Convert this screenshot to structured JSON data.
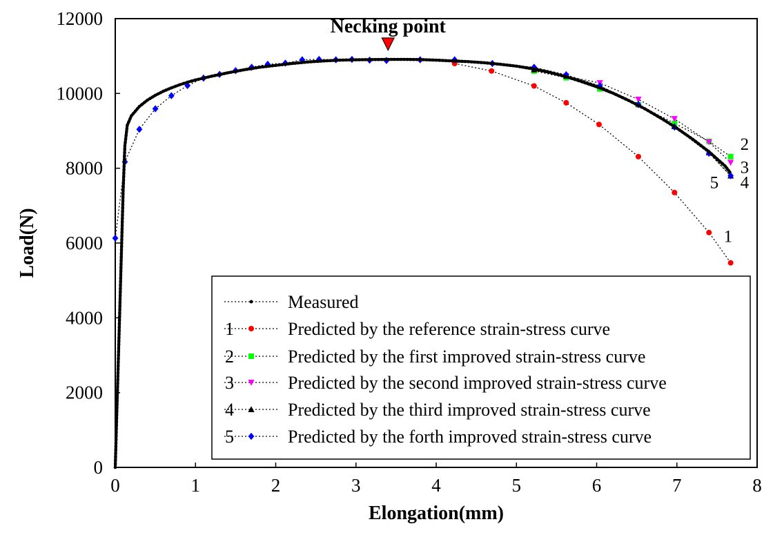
{
  "chart_data": {
    "type": "line",
    "title": "",
    "xlabel": "Elongation(mm)",
    "ylabel": "Load(N)",
    "xlim": [
      0,
      8
    ],
    "ylim": [
      0,
      12000
    ],
    "x_ticks": [
      "0",
      "1",
      "2",
      "3",
      "4",
      "5",
      "6",
      "7",
      "8"
    ],
    "y_ticks": [
      "0",
      "2000",
      "4000",
      "6000",
      "8000",
      "10000",
      "12000"
    ],
    "grid": false,
    "legend_position": "bottom-right",
    "annotation": {
      "text": "Necking point",
      "x": 3.4,
      "y": 10950,
      "color": "#ff0000"
    },
    "series": [
      {
        "name": "Measured",
        "label": "",
        "color": "#000000",
        "marker": "circle",
        "points": [
          [
            0,
            0
          ],
          [
            0.02,
            1500
          ],
          [
            0.04,
            3000
          ],
          [
            0.06,
            4500
          ],
          [
            0.08,
            6000
          ],
          [
            0.1,
            7500
          ],
          [
            0.12,
            8600
          ],
          [
            0.15,
            9150
          ],
          [
            0.2,
            9400
          ],
          [
            0.3,
            9650
          ],
          [
            0.4,
            9820
          ],
          [
            0.5,
            9950
          ],
          [
            0.6,
            10060
          ],
          [
            0.7,
            10150
          ],
          [
            0.8,
            10230
          ],
          [
            0.9,
            10300
          ],
          [
            1.0,
            10360
          ],
          [
            1.2,
            10460
          ],
          [
            1.4,
            10550
          ],
          [
            1.6,
            10630
          ],
          [
            1.8,
            10700
          ],
          [
            2.0,
            10750
          ],
          [
            2.2,
            10800
          ],
          [
            2.4,
            10840
          ],
          [
            2.6,
            10870
          ],
          [
            2.8,
            10890
          ],
          [
            3.0,
            10900
          ],
          [
            3.2,
            10905
          ],
          [
            3.4,
            10910
          ],
          [
            3.6,
            10910
          ],
          [
            3.8,
            10905
          ],
          [
            4.0,
            10890
          ],
          [
            4.2,
            10870
          ],
          [
            4.4,
            10850
          ],
          [
            4.6,
            10820
          ],
          [
            4.8,
            10780
          ],
          [
            5.0,
            10730
          ],
          [
            5.2,
            10660
          ],
          [
            5.4,
            10570
          ],
          [
            5.6,
            10460
          ],
          [
            5.8,
            10330
          ],
          [
            6.0,
            10180
          ],
          [
            6.2,
            10010
          ],
          [
            6.4,
            9810
          ],
          [
            6.6,
            9590
          ],
          [
            6.8,
            9340
          ],
          [
            7.0,
            9070
          ],
          [
            7.2,
            8770
          ],
          [
            7.4,
            8440
          ],
          [
            7.6,
            8060
          ],
          [
            7.67,
            7870
          ]
        ]
      },
      {
        "name": "Predicted by the reference strain-stress curve",
        "label": "1",
        "color": "#ff0000",
        "marker": "circle",
        "points": [
          [
            4.23,
            10800
          ],
          [
            4.69,
            10600
          ],
          [
            5.22,
            10200
          ],
          [
            5.62,
            9750
          ],
          [
            6.03,
            9170
          ],
          [
            6.52,
            8310
          ],
          [
            6.97,
            7350
          ],
          [
            7.4,
            6280
          ],
          [
            7.67,
            5470
          ]
        ]
      },
      {
        "name": "Predicted by the first improved strain-stress curve",
        "label": "2",
        "color": "#00ff00",
        "marker": "square",
        "points": [
          [
            5.22,
            10600
          ],
          [
            5.62,
            10420
          ],
          [
            6.04,
            10120
          ],
          [
            6.52,
            9700
          ],
          [
            6.97,
            9200
          ],
          [
            7.4,
            8720
          ],
          [
            7.67,
            8310
          ]
        ]
      },
      {
        "name": "Predicted by the second improved strain-stress curve",
        "label": "3",
        "color": "#ff00ff",
        "marker": "triangle-down",
        "points": [
          [
            5.22,
            10630
          ],
          [
            5.62,
            10460
          ],
          [
            6.04,
            10280
          ],
          [
            6.52,
            9840
          ],
          [
            6.97,
            9320
          ],
          [
            7.4,
            8700
          ],
          [
            7.67,
            8150
          ]
        ]
      },
      {
        "name": "Predicted by the third improved strain-stress curve",
        "label": "4",
        "color": "#000000",
        "marker": "triangle-up",
        "points": [
          [
            5.22,
            10640
          ],
          [
            5.62,
            10470
          ],
          [
            6.04,
            10200
          ],
          [
            6.52,
            9720
          ],
          [
            6.97,
            9120
          ],
          [
            7.4,
            8420
          ],
          [
            7.67,
            7800
          ]
        ]
      },
      {
        "name": "Predicted by the forth improved strain-stress curve",
        "label": "5",
        "color": "#0000ff",
        "marker": "diamond",
        "points": [
          [
            0.0,
            6130
          ],
          [
            0.12,
            8170
          ],
          [
            0.3,
            9040
          ],
          [
            0.5,
            9590
          ],
          [
            0.7,
            9940
          ],
          [
            0.9,
            10210
          ],
          [
            1.1,
            10410
          ],
          [
            1.3,
            10510
          ],
          [
            1.5,
            10610
          ],
          [
            1.7,
            10700
          ],
          [
            1.9,
            10780
          ],
          [
            2.12,
            10810
          ],
          [
            2.33,
            10900
          ],
          [
            2.54,
            10910
          ],
          [
            2.75,
            10900
          ],
          [
            2.95,
            10910
          ],
          [
            3.17,
            10890
          ],
          [
            3.38,
            10880
          ],
          [
            3.8,
            10900
          ],
          [
            4.23,
            10900
          ],
          [
            4.7,
            10800
          ],
          [
            5.22,
            10700
          ],
          [
            5.62,
            10500
          ],
          [
            6.04,
            10200
          ],
          [
            6.52,
            9700
          ],
          [
            6.97,
            9100
          ],
          [
            7.4,
            8400
          ],
          [
            7.67,
            7800
          ]
        ]
      }
    ]
  }
}
